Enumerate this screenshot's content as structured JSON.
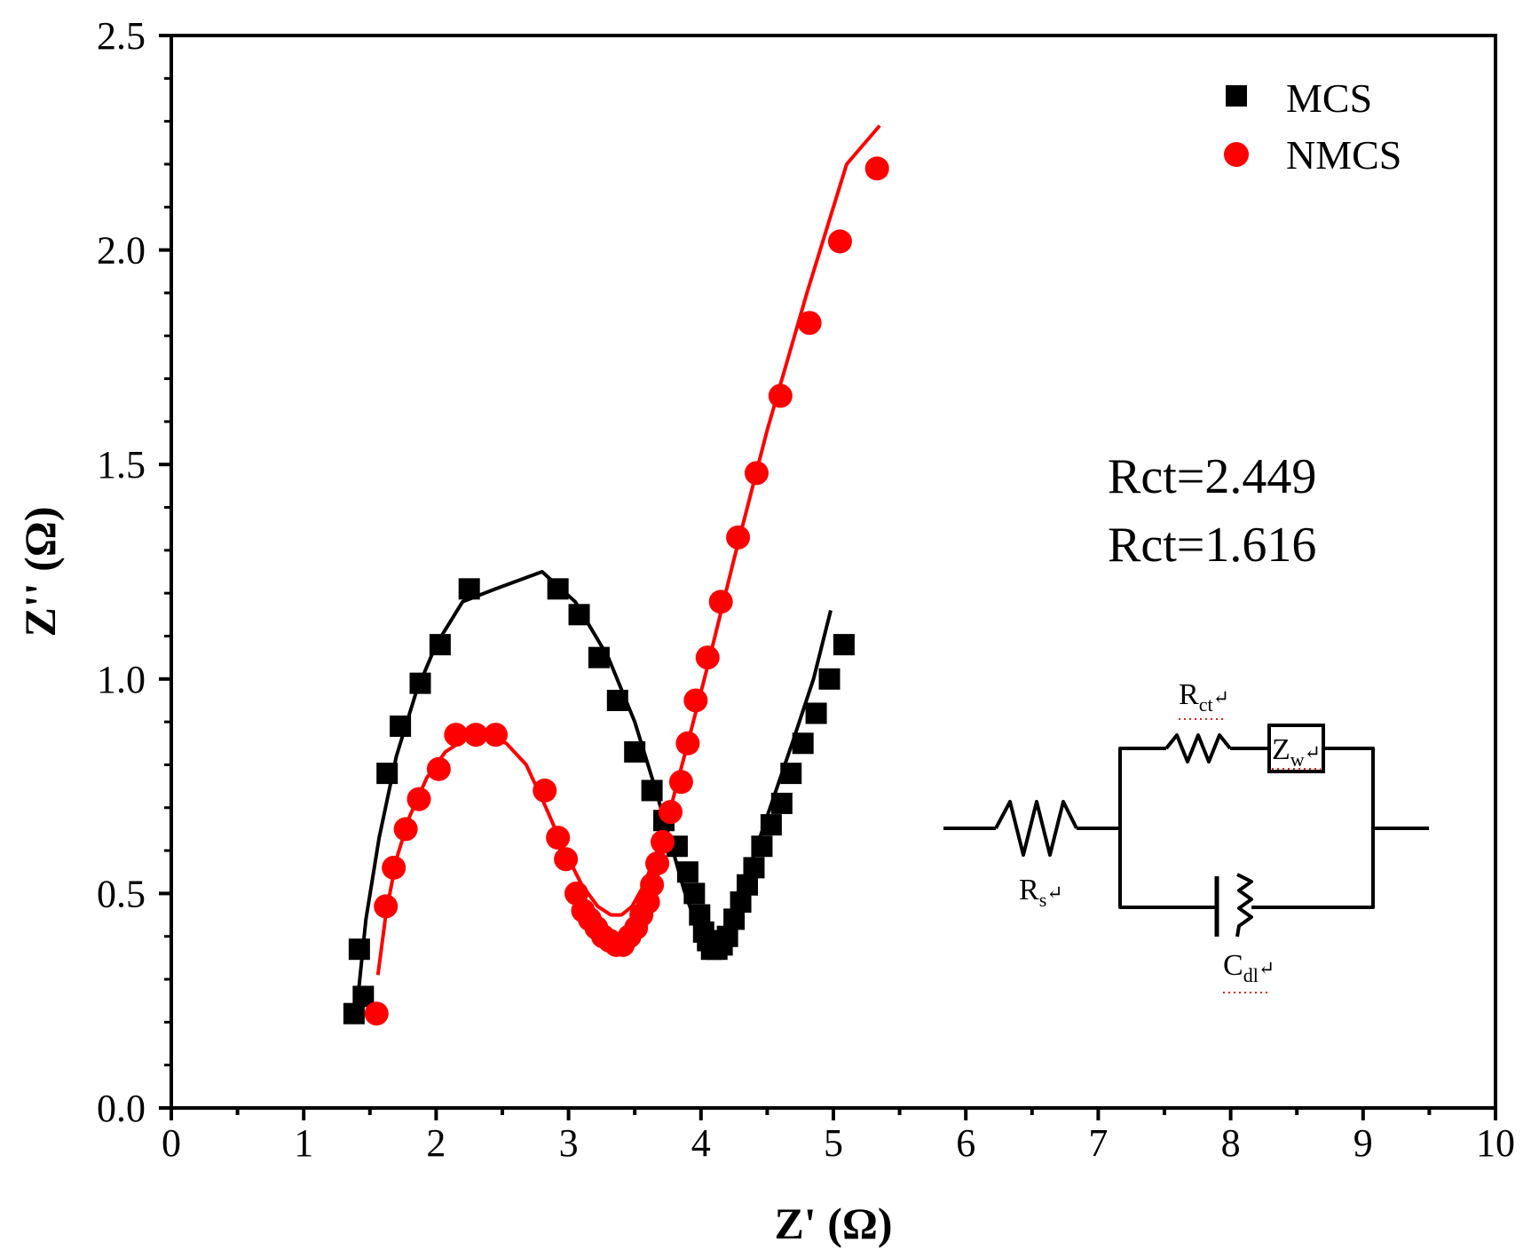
{
  "chart_data": {
    "type": "scatter",
    "xlabel": "Z' (Ω)",
    "ylabel": "Z'' (Ω)",
    "xlim": [
      0,
      10
    ],
    "ylim": [
      0,
      2.5
    ],
    "xticks": [
      "0",
      "1",
      "2",
      "3",
      "4",
      "5",
      "6",
      "7",
      "8",
      "9",
      "10"
    ],
    "yticks": [
      "0.0",
      "0.5",
      "1.0",
      "1.5",
      "2.0",
      "2.5"
    ],
    "legend_position": "top-right",
    "series": [
      {
        "name": "MCS",
        "marker": "square",
        "color": "#000000",
        "points": [
          [
            1.38,
            0.22
          ],
          [
            1.45,
            0.26
          ],
          [
            1.42,
            0.37
          ],
          [
            1.63,
            0.78
          ],
          [
            1.73,
            0.89
          ],
          [
            1.88,
            0.99
          ],
          [
            2.03,
            1.08
          ],
          [
            2.25,
            1.21
          ],
          [
            2.92,
            1.21
          ],
          [
            3.08,
            1.15
          ],
          [
            3.23,
            1.05
          ],
          [
            3.37,
            0.95
          ],
          [
            3.5,
            0.83
          ],
          [
            3.63,
            0.74
          ],
          [
            3.72,
            0.67
          ],
          [
            3.82,
            0.61
          ],
          [
            3.9,
            0.55
          ],
          [
            3.95,
            0.5
          ],
          [
            3.99,
            0.45
          ],
          [
            4.02,
            0.41
          ],
          [
            4.05,
            0.39
          ],
          [
            4.08,
            0.37
          ],
          [
            4.12,
            0.37
          ],
          [
            4.16,
            0.38
          ],
          [
            4.2,
            0.4
          ],
          [
            4.25,
            0.44
          ],
          [
            4.3,
            0.48
          ],
          [
            4.35,
            0.52
          ],
          [
            4.4,
            0.56
          ],
          [
            4.46,
            0.61
          ],
          [
            4.53,
            0.66
          ],
          [
            4.61,
            0.71
          ],
          [
            4.68,
            0.78
          ],
          [
            4.77,
            0.85
          ],
          [
            4.87,
            0.92
          ],
          [
            4.97,
            1.0
          ],
          [
            5.08,
            1.08
          ]
        ],
        "fit": [
          [
            1.4,
            0.23
          ],
          [
            1.47,
            0.44
          ],
          [
            1.57,
            0.63
          ],
          [
            1.7,
            0.82
          ],
          [
            1.85,
            0.97
          ],
          [
            2.0,
            1.08
          ],
          [
            2.2,
            1.18
          ],
          [
            2.45,
            1.21
          ],
          [
            2.8,
            1.25
          ],
          [
            3.05,
            1.18
          ],
          [
            3.3,
            1.05
          ],
          [
            3.5,
            0.9
          ],
          [
            3.65,
            0.75
          ],
          [
            3.77,
            0.62
          ],
          [
            3.87,
            0.51
          ],
          [
            3.95,
            0.44
          ],
          [
            4.03,
            0.4
          ],
          [
            4.1,
            0.39
          ],
          [
            4.18,
            0.41
          ],
          [
            4.3,
            0.5
          ],
          [
            4.5,
            0.68
          ],
          [
            4.7,
            0.86
          ],
          [
            4.85,
            1.0
          ],
          [
            4.98,
            1.16
          ]
        ]
      },
      {
        "name": "NMCS",
        "marker": "circle",
        "color": "#ff0000",
        "points": [
          [
            1.55,
            0.22
          ],
          [
            1.62,
            0.47
          ],
          [
            1.68,
            0.56
          ],
          [
            1.77,
            0.65
          ],
          [
            1.87,
            0.72
          ],
          [
            2.02,
            0.79
          ],
          [
            2.15,
            0.87
          ],
          [
            2.3,
            0.87
          ],
          [
            2.45,
            0.87
          ],
          [
            2.82,
            0.74
          ],
          [
            2.92,
            0.63
          ],
          [
            2.98,
            0.58
          ],
          [
            3.06,
            0.5
          ],
          [
            3.11,
            0.46
          ],
          [
            3.16,
            0.44
          ],
          [
            3.21,
            0.42
          ],
          [
            3.26,
            0.4
          ],
          [
            3.31,
            0.39
          ],
          [
            3.36,
            0.38
          ],
          [
            3.41,
            0.38
          ],
          [
            3.46,
            0.4
          ],
          [
            3.51,
            0.42
          ],
          [
            3.55,
            0.45
          ],
          [
            3.6,
            0.48
          ],
          [
            3.63,
            0.52
          ],
          [
            3.67,
            0.57
          ],
          [
            3.71,
            0.62
          ],
          [
            3.77,
            0.69
          ],
          [
            3.85,
            0.76
          ],
          [
            3.9,
            0.85
          ],
          [
            3.96,
            0.95
          ],
          [
            4.05,
            1.05
          ],
          [
            4.15,
            1.18
          ],
          [
            4.28,
            1.33
          ],
          [
            4.42,
            1.48
          ],
          [
            4.6,
            1.66
          ],
          [
            4.82,
            1.83
          ],
          [
            5.05,
            2.02
          ],
          [
            5.33,
            2.19
          ]
        ],
        "fit": [
          [
            1.56,
            0.31
          ],
          [
            1.62,
            0.45
          ],
          [
            1.7,
            0.58
          ],
          [
            1.8,
            0.68
          ],
          [
            1.93,
            0.77
          ],
          [
            2.07,
            0.83
          ],
          [
            2.22,
            0.86
          ],
          [
            2.38,
            0.87
          ],
          [
            2.53,
            0.85
          ],
          [
            2.68,
            0.8
          ],
          [
            2.83,
            0.7
          ],
          [
            2.97,
            0.6
          ],
          [
            3.1,
            0.52
          ],
          [
            3.22,
            0.47
          ],
          [
            3.32,
            0.45
          ],
          [
            3.4,
            0.45
          ],
          [
            3.48,
            0.47
          ],
          [
            3.57,
            0.52
          ],
          [
            3.67,
            0.6
          ],
          [
            3.78,
            0.71
          ],
          [
            3.9,
            0.85
          ],
          [
            4.05,
            1.03
          ],
          [
            4.25,
            1.28
          ],
          [
            4.5,
            1.58
          ],
          [
            4.8,
            1.9
          ],
          [
            5.1,
            2.2
          ],
          [
            5.35,
            2.29
          ]
        ]
      }
    ],
    "annotations": [
      "Rct=2.449",
      "Rct=1.616"
    ]
  },
  "circuit": {
    "rs_main": "R",
    "rs_sub": "s",
    "rct_main": "R",
    "rct_sub": "ct",
    "zw_main": "Z",
    "zw_sub": "w",
    "cdl_main": "C",
    "cdl_sub": "dl",
    "edit_mark": "↵"
  }
}
